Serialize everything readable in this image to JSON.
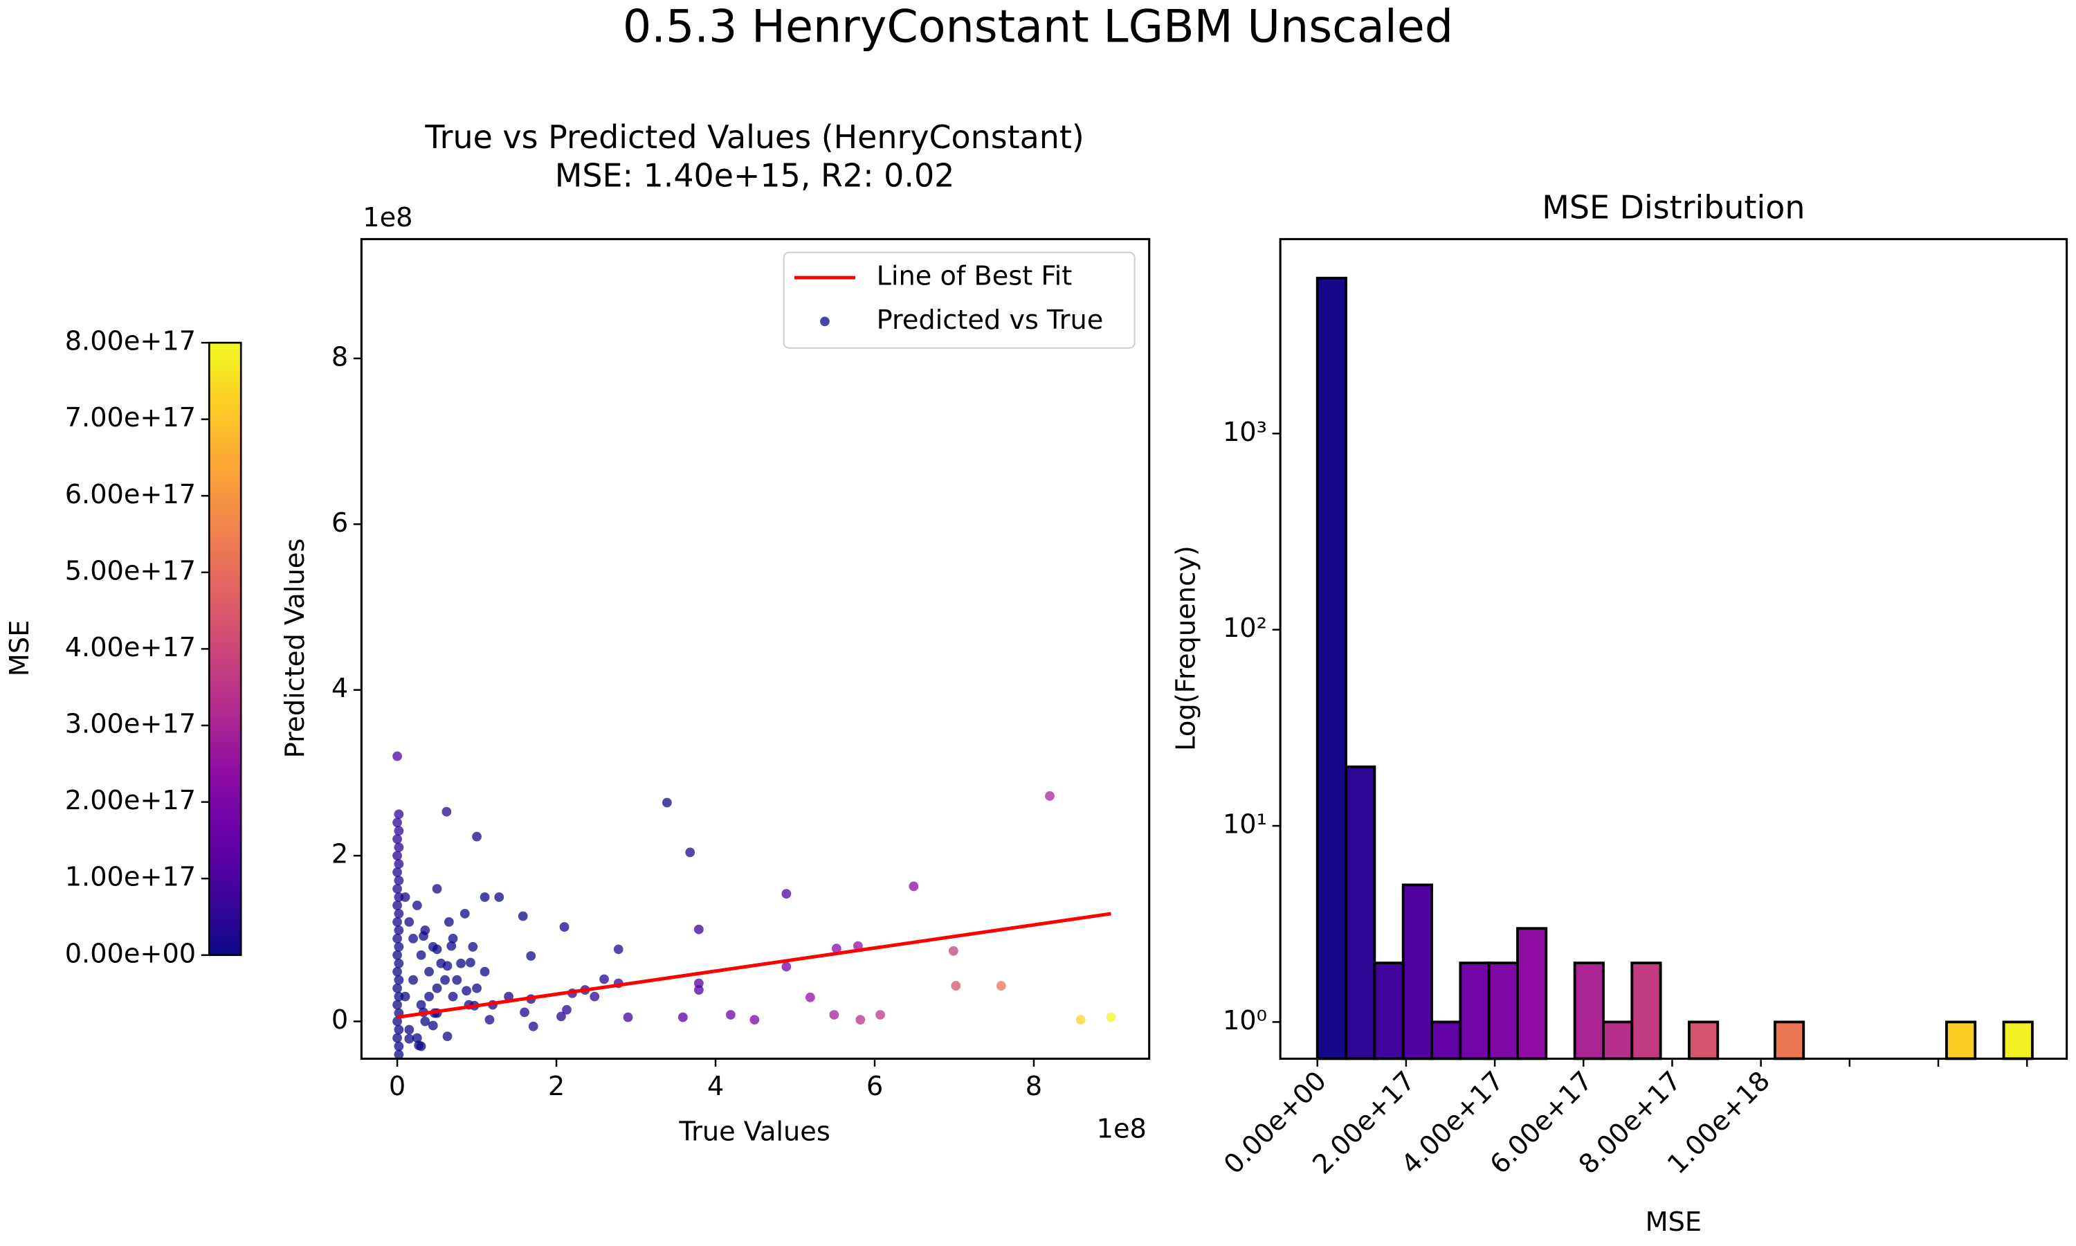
{
  "figure_title": "0.5.3 HenryConstant LGBM Unscaled",
  "chart_data": [
    {
      "type": "scatter",
      "title": [
        "True vs Predicted Values (HenryConstant)",
        "MSE: 1.40e+15, R2: 0.02"
      ],
      "x_label": "True Values",
      "y_label": "Predicted Values",
      "x_offset": "1e8",
      "y_offset": "1e8",
      "xlim": [
        -0.45,
        9.45
      ],
      "ylim": [
        -0.45,
        9.44
      ],
      "xticks": [
        0,
        2,
        4,
        6,
        8
      ],
      "yticks": [
        0,
        2,
        4,
        6,
        8
      ],
      "colormap": "plasma",
      "colorbar": {
        "label": "MSE",
        "clim": [
          0,
          8e+17
        ],
        "ticks": [
          {
            "value": 0,
            "label": "0.00e+00"
          },
          {
            "value": 1e+17,
            "label": "1.00e+17"
          },
          {
            "value": 2e+17,
            "label": "2.00e+17"
          },
          {
            "value": 3e+17,
            "label": "3.00e+17"
          },
          {
            "value": 4e+17,
            "label": "4.00e+17"
          },
          {
            "value": 5e+17,
            "label": "5.00e+17"
          },
          {
            "value": 6e+17,
            "label": "6.00e+17"
          },
          {
            "value": 7e+17,
            "label": "7.00e+17"
          },
          {
            "value": 8e+17,
            "label": "8.00e+17"
          }
        ]
      },
      "legend": "upper right",
      "fit": {
        "name": "Line of Best Fit",
        "color": "#ff0000",
        "x": [
          0,
          8.97
        ],
        "y": [
          0.05,
          1.3
        ]
      },
      "series": [
        {
          "name": "Predicted vs True",
          "color": "#0d0887",
          "x": [
            0,
            0,
            0,
            0,
            0,
            0,
            0,
            0,
            0,
            0,
            0,
            0,
            0,
            0,
            0,
            0.02,
            0.02,
            0.02,
            0.02,
            0.02,
            0.02,
            0.02,
            0.02,
            0.02,
            0.02,
            0.02,
            0.02,
            0.02,
            0.02,
            0.02,
            0.02,
            0.1,
            0.15,
            0.2,
            0.25,
            0.3,
            0.35,
            0.4,
            0.45,
            0.5,
            0.55,
            0.1,
            0.2,
            0.3,
            0.4,
            0.5,
            0.15,
            0.25,
            0.35,
            0.45,
            0.6,
            0.65,
            0.7,
            0.8,
            0.85,
            0.9,
            0.95,
            1.0,
            1.1,
            1.2,
            0.3,
            0.5,
            0.7,
            0.62,
            1.0,
            1.1,
            1.28,
            1.58,
            1.68,
            2.1,
            2.78,
            3.39,
            3.68,
            3.79,
            4.89,
            6.49,
            8.2,
            6.99,
            7.02,
            7.59,
            8.97,
            8.59,
            5.82,
            5.49,
            6.07,
            5.19,
            4.89,
            5.52,
            5.79,
            4.49,
            4.19,
            3.79,
            3.79,
            3.59,
            2.9,
            2.78,
            2.48,
            2.2,
            2.13,
            2.06,
            1.71,
            1.68,
            1.6,
            1.4,
            1.16,
            0.97,
            0.87,
            0.75,
            0.63,
            0.5,
            0.33,
            0.68,
            0.92,
            0.33,
            0.27,
            0.15,
            0.63,
            0.47,
            2.36,
            2.6
          ],
          "y": [
            3.2,
            2.4,
            2.2,
            2.0,
            1.8,
            1.6,
            1.4,
            1.2,
            1.0,
            0.8,
            0.6,
            0.4,
            0.2,
            0,
            -0.2,
            2.5,
            2.3,
            2.1,
            1.9,
            1.7,
            1.5,
            1.3,
            1.1,
            0.9,
            0.7,
            0.5,
            0.3,
            0.1,
            -0.1,
            -0.3,
            -0.4,
            1.5,
            1.2,
            1.0,
            1.4,
            0.8,
            1.1,
            0.6,
            0.9,
            0.4,
            0.7,
            0.3,
            0.5,
            0.2,
            0.3,
            0.1,
            -0.1,
            -0.2,
            0.0,
            -0.05,
            0.5,
            1.2,
            0.3,
            0.7,
            1.3,
            0.2,
            0.9,
            0.4,
            0.6,
            0.2,
            -0.3,
            1.6,
            1.0,
            2.53,
            2.23,
            1.5,
            1.5,
            1.27,
            0.79,
            1.14,
            0.87,
            2.64,
            2.04,
            1.11,
            1.54,
            1.63,
            2.72,
            0.85,
            0.43,
            0.43,
            0.05,
            0.02,
            0.02,
            0.08,
            0.08,
            0.29,
            0.66,
            0.88,
            0.91,
            0.02,
            0.08,
            0.38,
            0.46,
            0.05,
            0.05,
            0.46,
            0.3,
            0.34,
            0.14,
            0.06,
            -0.06,
            0.27,
            0.11,
            0.3,
            0.02,
            0.19,
            0.37,
            0.5,
            0.67,
            0.87,
            1.03,
            0.91,
            0.71,
            0.11,
            -0.29,
            -0.21,
            -0.18,
            0.1,
            0.38,
            0.51
          ]
        }
      ]
    },
    {
      "type": "histogram",
      "title": "MSE Distribution",
      "x_label": "MSE",
      "y_label": "Log(Frequency)",
      "log_y": true,
      "colormap": "plasma",
      "edge_color": "#000000",
      "xlim": [
        -8.36e+16,
        1.6896e+18
      ],
      "ylim": [
        0.65,
        9800
      ],
      "xticks": [
        {
          "value": 0,
          "label": "0.00e+00"
        },
        {
          "value": 2e+17,
          "label": "2.00e+17"
        },
        {
          "value": 4e+17,
          "label": "4.00e+17"
        },
        {
          "value": 6e+17,
          "label": "6.00e+17"
        },
        {
          "value": 8e+17,
          "label": "8.00e+17"
        },
        {
          "value": 1e+18,
          "label": "1.00e+18"
        },
        {
          "value": 1.2e+18,
          "label": null
        },
        {
          "value": 1.4e+18,
          "label": null
        },
        {
          "value": 1.6e+18,
          "label": null
        }
      ],
      "yticks": [
        {
          "value": 1,
          "label": "10⁰"
        },
        {
          "value": 10,
          "label": "10¹"
        },
        {
          "value": 100,
          "label": "10²"
        },
        {
          "value": 1000,
          "label": "10³"
        }
      ],
      "bins": [
        0,
        6.448e+16,
        1.2896e+17,
        1.9344e+17,
        2.5792e+17,
        3.224e+17,
        3.8688e+17,
        4.5136e+17,
        5.1584e+17,
        5.8032e+17,
        6.448e+17,
        7.0928e+17,
        7.7376e+17,
        8.3824e+17,
        9.0272e+17,
        9.672e+17,
        1.03168e+18,
        1.09616e+18,
        1.16064e+18,
        1.22512e+18,
        1.2896e+18,
        1.35408e+18,
        1.41856e+18,
        1.48304e+18,
        1.54752e+18,
        1.612e+18
      ],
      "values": [
        6200,
        20,
        2,
        5,
        1,
        2,
        2,
        3,
        0,
        2,
        1,
        2,
        0,
        1,
        0,
        0,
        1,
        0,
        0,
        0,
        0,
        0,
        1,
        0,
        1
      ]
    }
  ]
}
